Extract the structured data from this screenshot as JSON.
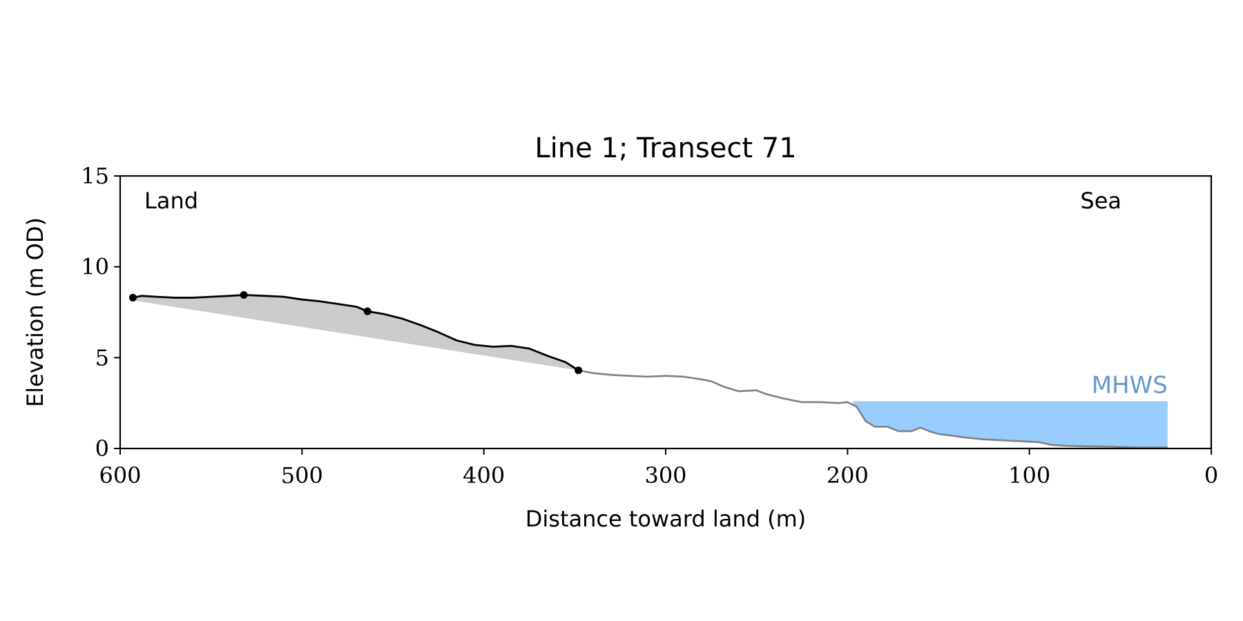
{
  "chart_data": {
    "type": "line",
    "title": "Line 1; Transect 71",
    "xlabel": "Distance toward land (m)",
    "ylabel": "Elevation (m OD)",
    "xlim": [
      600,
      0
    ],
    "ylim": [
      0,
      15
    ],
    "x_ticks": [
      600,
      500,
      400,
      300,
      200,
      100,
      0
    ],
    "y_ticks": [
      0,
      5,
      10,
      15
    ],
    "grid": false,
    "legend": "none",
    "annotations": {
      "land": "Land",
      "sea": "Sea",
      "mhws": "MHWS"
    },
    "colors": {
      "dune_line": "#000000",
      "beach_line": "#808080",
      "dune_fill": "#cccccc",
      "water_fill": "#99ccff",
      "mhws_text": "#6699cc"
    },
    "mhws": {
      "level": 2.6,
      "x_from": 197,
      "x_to": 24
    },
    "dune_profile": [
      [
        593,
        8.3
      ],
      [
        588,
        8.4
      ],
      [
        580,
        8.35
      ],
      [
        570,
        8.3
      ],
      [
        560,
        8.3
      ],
      [
        550,
        8.35
      ],
      [
        540,
        8.4
      ],
      [
        532,
        8.45
      ],
      [
        520,
        8.4
      ],
      [
        510,
        8.35
      ],
      [
        500,
        8.2
      ],
      [
        490,
        8.1
      ],
      [
        480,
        7.95
      ],
      [
        470,
        7.8
      ],
      [
        464,
        7.55
      ],
      [
        455,
        7.4
      ],
      [
        445,
        7.15
      ],
      [
        435,
        6.8
      ],
      [
        425,
        6.4
      ],
      [
        415,
        5.95
      ],
      [
        405,
        5.7
      ],
      [
        395,
        5.6
      ],
      [
        385,
        5.65
      ],
      [
        375,
        5.5
      ],
      [
        365,
        5.1
      ],
      [
        355,
        4.75
      ],
      [
        348,
        4.3
      ]
    ],
    "dune_markers": [
      [
        593,
        8.3
      ],
      [
        532,
        8.45
      ],
      [
        464,
        7.55
      ],
      [
        348,
        4.3
      ]
    ],
    "beach_profile": [
      [
        348,
        4.3
      ],
      [
        340,
        4.15
      ],
      [
        330,
        4.05
      ],
      [
        320,
        4.0
      ],
      [
        310,
        3.95
      ],
      [
        300,
        4.0
      ],
      [
        290,
        3.95
      ],
      [
        280,
        3.8
      ],
      [
        275,
        3.7
      ],
      [
        268,
        3.4
      ],
      [
        260,
        3.15
      ],
      [
        250,
        3.2
      ],
      [
        245,
        3.0
      ],
      [
        235,
        2.75
      ],
      [
        225,
        2.55
      ],
      [
        215,
        2.55
      ],
      [
        205,
        2.5
      ],
      [
        200,
        2.55
      ],
      [
        195,
        2.3
      ],
      [
        190,
        1.5
      ],
      [
        185,
        1.2
      ],
      [
        178,
        1.2
      ],
      [
        172,
        0.95
      ],
      [
        165,
        0.95
      ],
      [
        160,
        1.15
      ],
      [
        155,
        0.95
      ],
      [
        150,
        0.8
      ],
      [
        142,
        0.7
      ],
      [
        135,
        0.6
      ],
      [
        125,
        0.5
      ],
      [
        115,
        0.45
      ],
      [
        105,
        0.4
      ],
      [
        95,
        0.35
      ],
      [
        88,
        0.2
      ],
      [
        80,
        0.15
      ],
      [
        70,
        0.12
      ],
      [
        55,
        0.1
      ],
      [
        40,
        0.05
      ],
      [
        24,
        0.05
      ]
    ]
  }
}
